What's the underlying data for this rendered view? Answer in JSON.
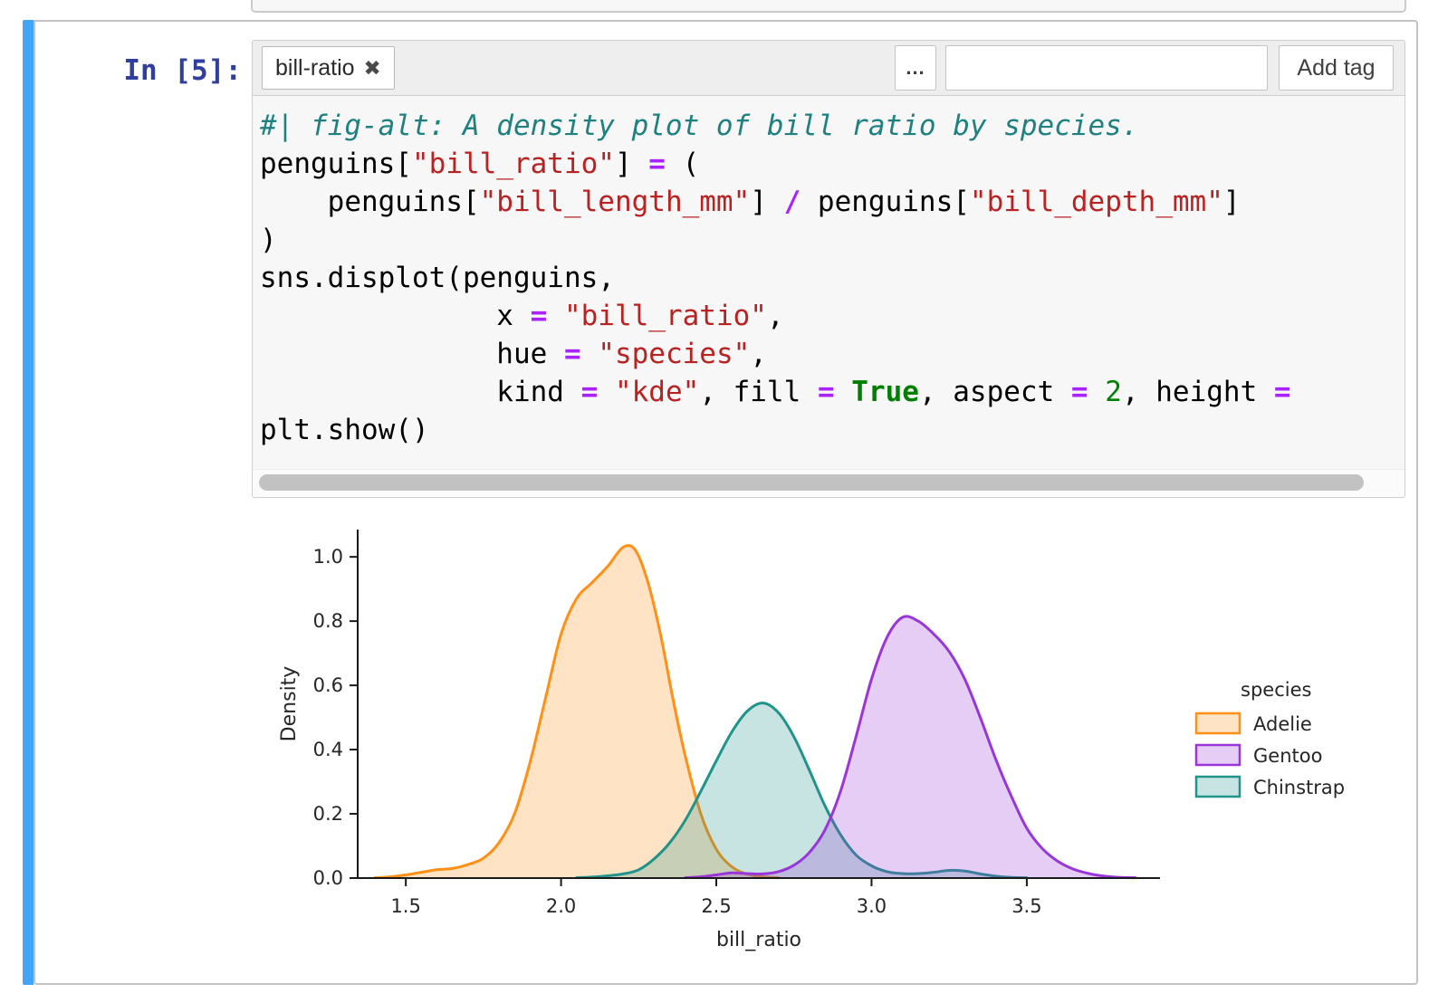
{
  "cell": {
    "prompt": "In [5]:",
    "toolbar": {
      "tag_label": "bill-ratio",
      "tag_remove_icon": "✖",
      "more_button_label": "...",
      "tag_input_value": "",
      "add_tag_label": "Add tag"
    },
    "code": {
      "lines": [
        [
          {
            "c": "com",
            "t": "#| fig-alt: A density plot of bill ratio by species."
          }
        ],
        [
          {
            "t": "penguins["
          },
          {
            "c": "str",
            "t": "\"bill_ratio\""
          },
          {
            "t": "] "
          },
          {
            "c": "op",
            "t": "="
          },
          {
            "t": " ("
          }
        ],
        [
          {
            "t": "    penguins["
          },
          {
            "c": "str",
            "t": "\"bill_length_mm\""
          },
          {
            "t": "] "
          },
          {
            "c": "op",
            "t": "/"
          },
          {
            "t": " penguins["
          },
          {
            "c": "str",
            "t": "\"bill_depth_mm\""
          },
          {
            "t": "]"
          }
        ],
        [
          {
            "t": ")"
          }
        ],
        [
          {
            "t": "sns.displot(penguins,"
          }
        ],
        [
          {
            "t": "              x "
          },
          {
            "c": "op",
            "t": "="
          },
          {
            "t": " "
          },
          {
            "c": "str",
            "t": "\"bill_ratio\""
          },
          {
            "t": ","
          }
        ],
        [
          {
            "t": "              hue "
          },
          {
            "c": "op",
            "t": "="
          },
          {
            "t": " "
          },
          {
            "c": "str",
            "t": "\"species\""
          },
          {
            "t": ","
          }
        ],
        [
          {
            "t": "              kind "
          },
          {
            "c": "op",
            "t": "="
          },
          {
            "t": " "
          },
          {
            "c": "str",
            "t": "\"kde\""
          },
          {
            "t": ", fill "
          },
          {
            "c": "op",
            "t": "="
          },
          {
            "t": " "
          },
          {
            "c": "kw",
            "t": "True"
          },
          {
            "t": ", aspect "
          },
          {
            "c": "op",
            "t": "="
          },
          {
            "t": " "
          },
          {
            "c": "num",
            "t": "2"
          },
          {
            "t": ", height "
          },
          {
            "c": "op",
            "t": "="
          }
        ],
        [
          {
            "t": "plt.show()"
          }
        ]
      ]
    }
  },
  "colors": {
    "selection_accent": "#42a5f5",
    "prompt": "#303F9F"
  },
  "chart_data": {
    "type": "area",
    "subtype": "kde-density",
    "title": "",
    "xlabel": "bill_ratio",
    "ylabel": "Density",
    "xlim": [
      1.345,
      3.929
    ],
    "ylim": [
      0,
      1.085
    ],
    "xticks": [
      1.5,
      2.0,
      2.5,
      3.0,
      3.5
    ],
    "xtick_labels": [
      "1.5",
      "2.0",
      "2.5",
      "3.0",
      "3.5"
    ],
    "yticks": [
      0.0,
      0.2,
      0.4,
      0.6,
      0.8,
      1.0
    ],
    "ytick_labels": [
      "0.0",
      "0.2",
      "0.4",
      "0.6",
      "0.8",
      "1.0"
    ],
    "grid": false,
    "legend_title": "species",
    "legend_position": "right",
    "legend_order": [
      "Adelie",
      "Gentoo",
      "Chinstrap"
    ],
    "draw_order": [
      "Adelie",
      "Chinstrap",
      "Gentoo"
    ],
    "series": [
      {
        "name": "Adelie",
        "color": "#ff9015",
        "fill_opacity": 0.25,
        "peak": {
          "x": 2.2,
          "density": 1.03
        },
        "points": [
          [
            1.4,
            0.001
          ],
          [
            1.45,
            0.004
          ],
          [
            1.5,
            0.01
          ],
          [
            1.55,
            0.018
          ],
          [
            1.6,
            0.026
          ],
          [
            1.65,
            0.03
          ],
          [
            1.7,
            0.042
          ],
          [
            1.75,
            0.062
          ],
          [
            1.8,
            0.11
          ],
          [
            1.85,
            0.2
          ],
          [
            1.9,
            0.36
          ],
          [
            1.95,
            0.56
          ],
          [
            2.0,
            0.76
          ],
          [
            2.05,
            0.87
          ],
          [
            2.1,
            0.92
          ],
          [
            2.15,
            0.97
          ],
          [
            2.2,
            1.03
          ],
          [
            2.24,
            1.02
          ],
          [
            2.28,
            0.92
          ],
          [
            2.32,
            0.76
          ],
          [
            2.36,
            0.56
          ],
          [
            2.4,
            0.38
          ],
          [
            2.45,
            0.2
          ],
          [
            2.5,
            0.09
          ],
          [
            2.55,
            0.035
          ],
          [
            2.6,
            0.012
          ],
          [
            2.65,
            0.004
          ],
          [
            2.7,
            0.001
          ]
        ]
      },
      {
        "name": "Gentoo",
        "color": "#9a36d9",
        "fill_opacity": 0.25,
        "peak": {
          "x": 3.12,
          "density": 0.81
        },
        "points": [
          [
            2.4,
            0.001
          ],
          [
            2.45,
            0.004
          ],
          [
            2.5,
            0.01
          ],
          [
            2.55,
            0.016
          ],
          [
            2.6,
            0.014
          ],
          [
            2.65,
            0.013
          ],
          [
            2.7,
            0.02
          ],
          [
            2.75,
            0.04
          ],
          [
            2.8,
            0.08
          ],
          [
            2.85,
            0.15
          ],
          [
            2.9,
            0.27
          ],
          [
            2.95,
            0.44
          ],
          [
            3.0,
            0.62
          ],
          [
            3.05,
            0.75
          ],
          [
            3.1,
            0.812
          ],
          [
            3.15,
            0.8
          ],
          [
            3.2,
            0.76
          ],
          [
            3.25,
            0.705
          ],
          [
            3.3,
            0.62
          ],
          [
            3.35,
            0.5
          ],
          [
            3.4,
            0.37
          ],
          [
            3.45,
            0.255
          ],
          [
            3.5,
            0.155
          ],
          [
            3.55,
            0.092
          ],
          [
            3.6,
            0.052
          ],
          [
            3.65,
            0.028
          ],
          [
            3.7,
            0.014
          ],
          [
            3.75,
            0.006
          ],
          [
            3.8,
            0.002
          ],
          [
            3.85,
            0.001
          ]
        ]
      },
      {
        "name": "Chinstrap",
        "color": "#20948b",
        "fill_opacity": 0.25,
        "peak": {
          "x": 2.65,
          "density": 0.545
        },
        "points": [
          [
            2.05,
            0.001
          ],
          [
            2.1,
            0.003
          ],
          [
            2.15,
            0.007
          ],
          [
            2.2,
            0.013
          ],
          [
            2.25,
            0.026
          ],
          [
            2.3,
            0.06
          ],
          [
            2.35,
            0.11
          ],
          [
            2.4,
            0.18
          ],
          [
            2.45,
            0.27
          ],
          [
            2.5,
            0.365
          ],
          [
            2.55,
            0.455
          ],
          [
            2.6,
            0.52
          ],
          [
            2.65,
            0.545
          ],
          [
            2.7,
            0.515
          ],
          [
            2.75,
            0.44
          ],
          [
            2.8,
            0.335
          ],
          [
            2.85,
            0.225
          ],
          [
            2.9,
            0.135
          ],
          [
            2.95,
            0.072
          ],
          [
            3.0,
            0.038
          ],
          [
            3.05,
            0.02
          ],
          [
            3.1,
            0.014
          ],
          [
            3.15,
            0.014
          ],
          [
            3.2,
            0.018
          ],
          [
            3.25,
            0.024
          ],
          [
            3.3,
            0.022
          ],
          [
            3.35,
            0.013
          ],
          [
            3.4,
            0.006
          ],
          [
            3.45,
            0.002
          ],
          [
            3.5,
            0.001
          ]
        ]
      }
    ]
  }
}
